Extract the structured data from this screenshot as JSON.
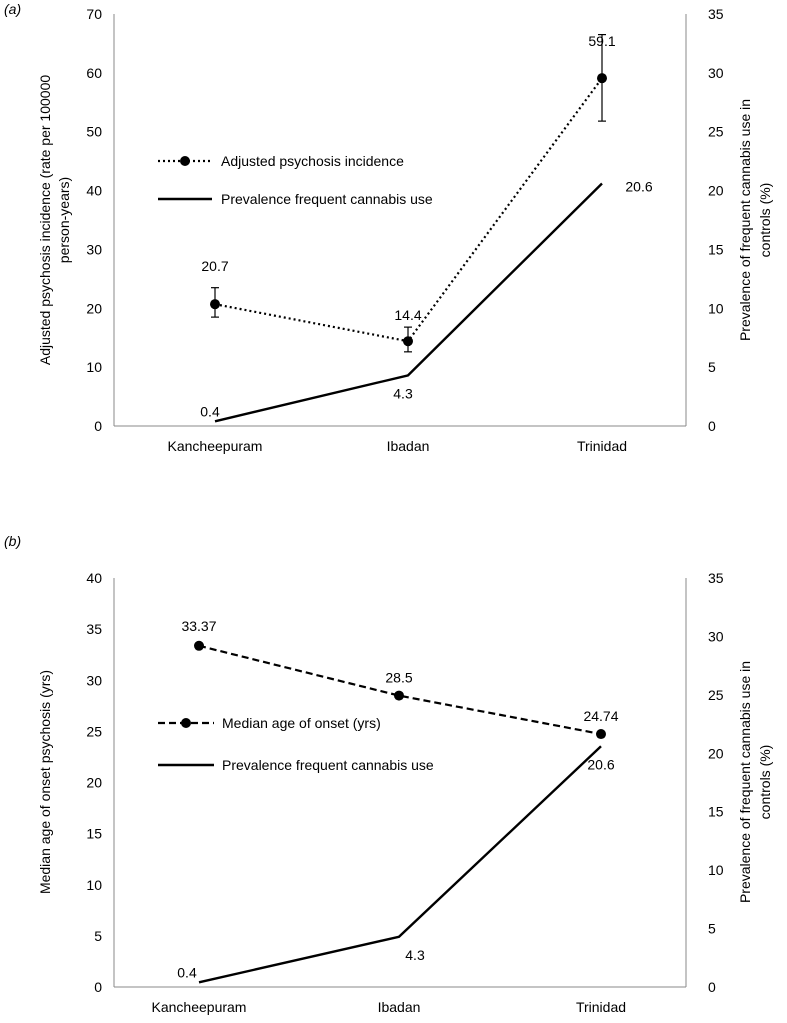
{
  "chart_data": [
    {
      "panel_label": "(a)",
      "type": "line",
      "categories": [
        "Kancheepuram",
        "Ibadan",
        "Trinidad"
      ],
      "ylabel_left": "Adjusted psychosis incidence (rate per 100000 person-years)",
      "ylabel_left_lines": [
        "Adjusted psychosis incidence (rate per 100000",
        "person-years)"
      ],
      "ylabel_right": "Prevalence of frequent cannabis use in controls (%)",
      "ylabel_right_lines": [
        "Prevalence of frequent cannabis use in",
        "controls (%)"
      ],
      "ylim_left": [
        0,
        70
      ],
      "ylim_right": [
        0,
        35
      ],
      "yticks_left": [
        "0",
        "10",
        "20",
        "30",
        "40",
        "50",
        "60",
        "70"
      ],
      "yticks_right": [
        "0",
        "5",
        "10",
        "15",
        "20",
        "25",
        "30",
        "35"
      ],
      "series": [
        {
          "name": "Adjusted psychosis incidence",
          "axis": "left",
          "style": "dotted-marker",
          "values": [
            20.7,
            14.4,
            59.1
          ],
          "error_low": [
            18.5,
            12.6,
            51.8
          ],
          "error_high": [
            23.5,
            16.8,
            66.5
          ],
          "labels": [
            "20.7",
            "14.4",
            "59.1"
          ]
        },
        {
          "name": "Prevalence frequent cannabis use",
          "axis": "right",
          "style": "solid",
          "values": [
            0.4,
            4.3,
            20.6
          ],
          "labels": [
            "0.4",
            "4.3",
            "20.6"
          ]
        }
      ],
      "legend_position": "upper-middle",
      "grid": false
    },
    {
      "panel_label": "(b)",
      "type": "line",
      "categories": [
        "Kancheepuram",
        "Ibadan",
        "Trinidad"
      ],
      "ylabel_left": "Median age of onset psychosis (yrs)",
      "ylabel_left_lines": [
        "Median age of onset psychosis (yrs)"
      ],
      "ylabel_right": "Prevalence of frequent cannabis use in controls (%)",
      "ylabel_right_lines": [
        "Prevalence of frequent cannabis use in",
        "controls (%)"
      ],
      "ylim_left": [
        0,
        40
      ],
      "ylim_right": [
        0,
        35
      ],
      "yticks_left": [
        "0",
        "5",
        "10",
        "15",
        "20",
        "25",
        "30",
        "35",
        "40"
      ],
      "yticks_right": [
        "0",
        "5",
        "10",
        "15",
        "20",
        "25",
        "30",
        "35"
      ],
      "series": [
        {
          "name": "Median age of onset (yrs)",
          "axis": "left",
          "style": "dashed-marker",
          "values": [
            33.37,
            28.5,
            24.74
          ],
          "labels": [
            "33.37",
            "28.5",
            "24.74"
          ]
        },
        {
          "name": "Prevalence frequent cannabis use",
          "axis": "right",
          "style": "solid",
          "values": [
            0.4,
            4.3,
            20.6
          ],
          "labels": [
            "0.4",
            "4.3",
            "20.6"
          ]
        }
      ],
      "legend_position": "middle",
      "grid": false
    }
  ]
}
